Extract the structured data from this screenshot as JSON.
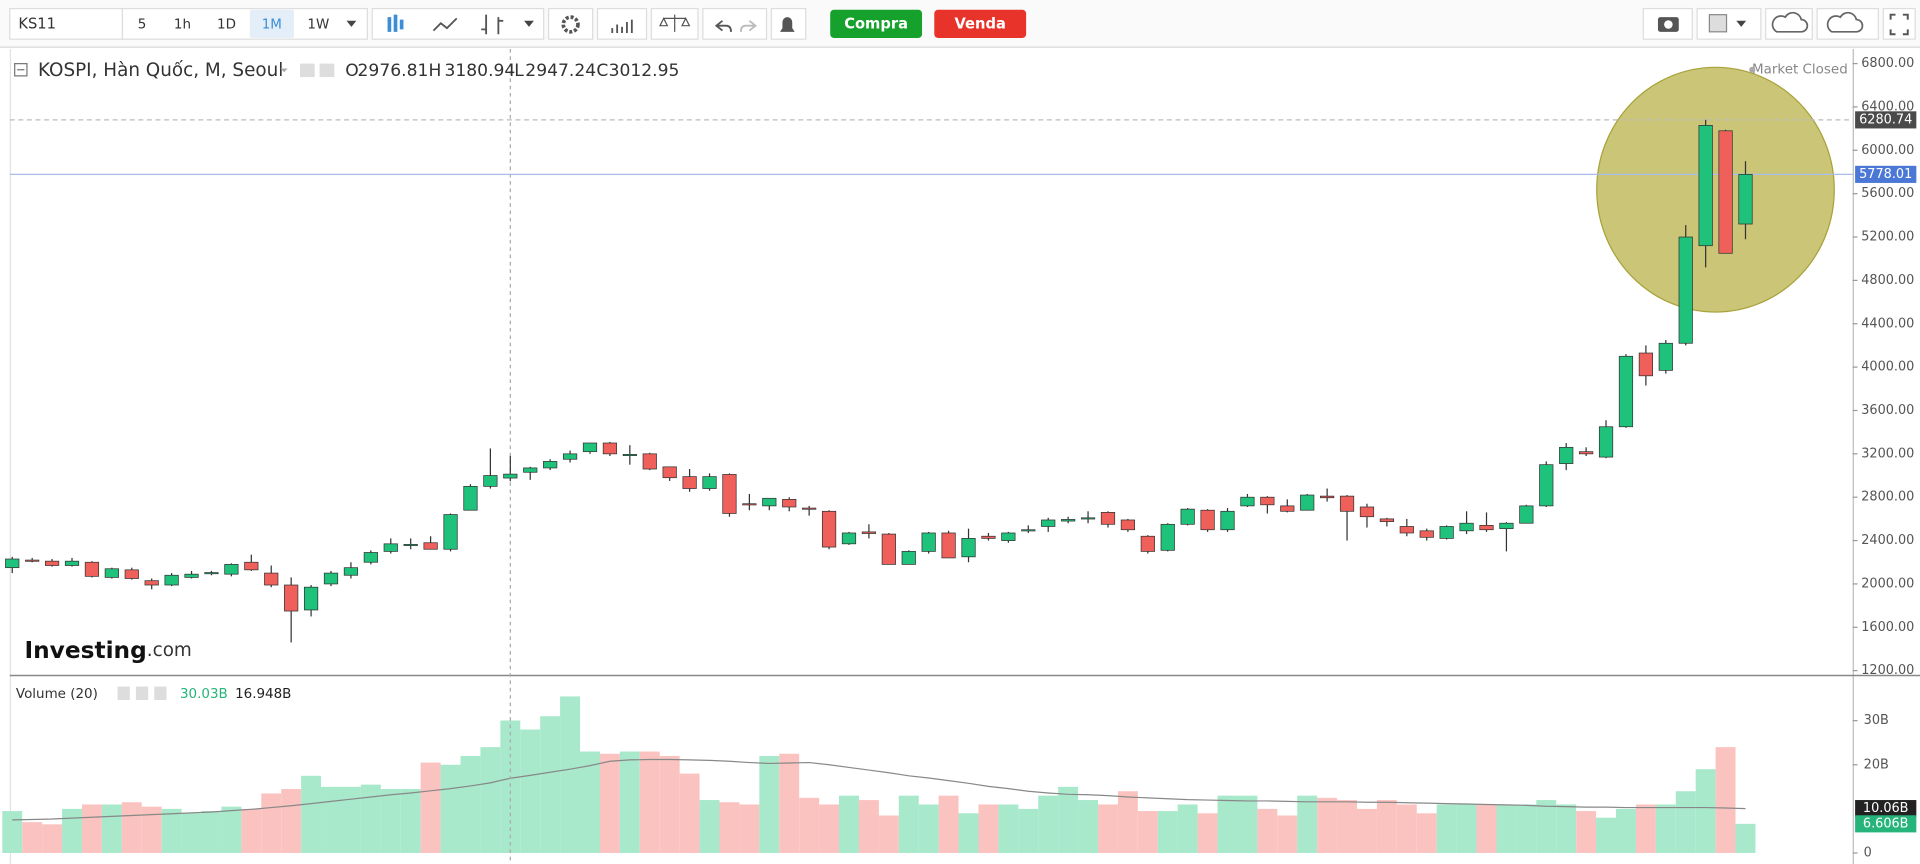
{
  "toolbar": {
    "symbol": "KS11",
    "intervals": [
      "5",
      "1h",
      "1D",
      "1M",
      "1W"
    ],
    "active_interval": "1M",
    "buy": "Compra",
    "sell": "Venda"
  },
  "chart_data": {
    "type": "candlestick",
    "title": "KOSPI, Hàn Quốc, M, Seoul",
    "status": "Market Closed",
    "brand": "Investing",
    "brand_suffix": ".com",
    "ohlc_keys": [
      "O",
      "H",
      "L",
      "C"
    ],
    "crosshair_index": 25,
    "up_color": "#1ec27b",
    "down_color": "#f0605a",
    "open": [
      2150,
      2220,
      2210,
      2170,
      2200,
      2060,
      2130,
      2030,
      1990,
      2060,
      2100,
      2090,
      2200,
      2100,
      1990,
      1760,
      2000,
      2080,
      2200,
      2300,
      2360,
      2380,
      2320,
      2680,
      2900,
      2976.81,
      3030,
      3070,
      3150,
      3220,
      3300,
      3190,
      3200,
      3080,
      2990,
      2880,
      3010,
      2740,
      2720,
      2780,
      2700,
      2670,
      2370,
      2480,
      2460,
      2180,
      2300,
      2470,
      2250,
      2440,
      2400,
      2490,
      2530,
      2580,
      2600,
      2660,
      2590,
      2440,
      2310,
      2550,
      2680,
      2500,
      2720,
      2800,
      2720,
      2680,
      2810,
      2810,
      2710,
      2600,
      2530,
      2490,
      2420,
      2490,
      2540,
      2510,
      2560,
      2720,
      3110,
      3220,
      3170,
      3450,
      4130,
      3970,
      4220,
      5120,
      6180,
      5320
    ],
    "high": [
      2250,
      2240,
      2230,
      2240,
      2210,
      2150,
      2150,
      2050,
      2100,
      2120,
      2120,
      2190,
      2270,
      2170,
      2060,
      1990,
      2120,
      2200,
      2310,
      2420,
      2420,
      2440,
      2650,
      2920,
      3250,
      3180.94,
      3080,
      3150,
      3230,
      3300,
      3310,
      3280,
      3210,
      3080,
      3060,
      3020,
      3020,
      2830,
      2790,
      2800,
      2720,
      2680,
      2480,
      2550,
      2470,
      2310,
      2480,
      2490,
      2510,
      2470,
      2480,
      2540,
      2610,
      2620,
      2670,
      2670,
      2600,
      2450,
      2560,
      2700,
      2690,
      2700,
      2830,
      2810,
      2780,
      2830,
      2880,
      2820,
      2740,
      2610,
      2600,
      2510,
      2540,
      2670,
      2660,
      2570,
      2730,
      3130,
      3300,
      3260,
      3510,
      4120,
      4200,
      4250,
      5310,
      6280.74,
      6190,
      5900
    ],
    "low": [
      2100,
      2200,
      2160,
      2160,
      2060,
      2050,
      2040,
      1950,
      1980,
      2050,
      2080,
      2070,
      2120,
      1970,
      1460,
      1700,
      1980,
      2050,
      2180,
      2280,
      2320,
      2320,
      2300,
      2680,
      2880,
      2947.24,
      2960,
      3050,
      3120,
      3200,
      3180,
      3100,
      3050,
      2950,
      2850,
      2860,
      2620,
      2680,
      2680,
      2670,
      2630,
      2320,
      2360,
      2420,
      2180,
      2180,
      2280,
      2240,
      2200,
      2400,
      2380,
      2470,
      2480,
      2560,
      2560,
      2520,
      2480,
      2280,
      2300,
      2540,
      2480,
      2480,
      2710,
      2650,
      2660,
      2680,
      2760,
      2400,
      2520,
      2530,
      2440,
      2400,
      2410,
      2460,
      2480,
      2300,
      2560,
      2710,
      3050,
      3180,
      3160,
      3440,
      3830,
      3940,
      4200,
      4920,
      5050,
      5180
    ],
    "close": [
      2230,
      2215,
      2170,
      2210,
      2070,
      2140,
      2050,
      1990,
      2080,
      2090,
      2105,
      2180,
      2130,
      1990,
      1750,
      1970,
      2100,
      2150,
      2290,
      2370,
      2365,
      2320,
      2640,
      2900,
      3000,
      3012.95,
      3070,
      3130,
      3200,
      3300,
      3200,
      3195,
      3060,
      2980,
      2880,
      2990,
      2650,
      2730,
      2790,
      2710,
      2690,
      2340,
      2470,
      2465,
      2180,
      2300,
      2470,
      2240,
      2420,
      2420,
      2470,
      2500,
      2590,
      2595,
      2610,
      2550,
      2500,
      2300,
      2550,
      2690,
      2500,
      2670,
      2800,
      2730,
      2670,
      2820,
      2795,
      2670,
      2620,
      2575,
      2470,
      2430,
      2530,
      2560,
      2500,
      2560,
      2720,
      3100,
      3260,
      3200,
      3450,
      4100,
      3920,
      4220,
      5200,
      6230,
      5050,
      5778.01
    ],
    "ylim": [
      1155,
      6935
    ],
    "yticks": [
      {
        "value": 1200,
        "label": "1200.00"
      },
      {
        "value": 1600,
        "label": "1600.00"
      },
      {
        "value": 2000,
        "label": "2000.00"
      },
      {
        "value": 2400,
        "label": "2400.00"
      },
      {
        "value": 2800,
        "label": "2800.00"
      },
      {
        "value": 3200,
        "label": "3200.00"
      },
      {
        "value": 3600,
        "label": "3600.00"
      },
      {
        "value": 4000,
        "label": "4000.00"
      },
      {
        "value": 4400,
        "label": "4400.00"
      },
      {
        "value": 4800,
        "label": "4800.00"
      },
      {
        "value": 5200,
        "label": "5200.00"
      },
      {
        "value": 5600,
        "label": "5600.00"
      },
      {
        "value": 6000,
        "label": "6000.00"
      },
      {
        "value": 6400,
        "label": "6400.00"
      },
      {
        "value": 6800,
        "label": "6800.00"
      }
    ],
    "price_tags": [
      {
        "value": 6280.74,
        "color": "#4a4a4a",
        "style": "dashed"
      },
      {
        "value": 5778.01,
        "color": "#4b78d6",
        "style": "solid"
      }
    ],
    "volume": {
      "title": "Volume (20)",
      "up_color": "#a8e8cb",
      "down_color": "#fbc3c0",
      "ma_color": "#888888",
      "values": [
        9.5,
        7,
        6.5,
        10,
        11,
        11,
        11.5,
        10.5,
        10,
        9,
        9.5,
        10.5,
        10,
        13.5,
        14.5,
        17.5,
        15,
        15,
        15.5,
        14.5,
        14.5,
        20.5,
        20,
        22,
        24,
        30.03,
        28,
        31,
        35.5,
        23,
        22.5,
        23,
        23,
        22,
        18,
        12,
        11.5,
        11,
        22,
        22.5,
        12.5,
        11,
        13,
        12,
        8.5,
        13,
        11,
        13,
        9,
        11,
        11,
        10,
        13,
        15,
        12,
        11,
        14,
        9.5,
        9.5,
        11,
        9,
        13,
        13,
        10,
        8.5,
        13,
        12.5,
        12,
        10,
        12,
        11,
        9,
        11,
        11,
        11,
        11,
        11,
        12,
        11,
        9.5,
        8,
        10,
        11,
        11,
        14,
        19,
        24,
        6.606
      ],
      "ma": [
        7.5,
        7.6,
        7.7,
        7.9,
        8.1,
        8.3,
        8.5,
        8.7,
        8.9,
        9.1,
        9.3,
        9.6,
        9.9,
        10.3,
        10.7,
        11.2,
        11.7,
        12.2,
        12.7,
        13.2,
        13.6,
        14.1,
        14.6,
        15.2,
        15.9,
        16.948,
        17.6,
        18.3,
        19.0,
        19.8,
        20.8,
        21.1,
        21.2,
        21.2,
        21.1,
        21.0,
        20.8,
        20.5,
        20.3,
        20.4,
        20.5,
        20.0,
        19.4,
        18.8,
        18.2,
        17.5,
        17.0,
        16.4,
        15.8,
        15.1,
        14.6,
        14.0,
        13.6,
        13.3,
        13.2,
        13.0,
        12.7,
        12.5,
        12.3,
        12.1,
        12.0,
        11.9,
        11.8,
        11.8,
        11.7,
        11.6,
        11.6,
        11.6,
        11.5,
        11.5,
        11.4,
        11.3,
        11.2,
        11.1,
        11.0,
        10.9,
        10.8,
        10.6,
        10.5,
        10.4,
        10.4,
        10.3,
        10.3,
        10.3,
        10.3,
        10.3,
        10.2,
        10.06
      ],
      "legend": {
        "volume": {
          "value": 30.03,
          "label": "30.03B"
        },
        "ma": {
          "value": 16.948,
          "label": "16.948B"
        }
      },
      "tags": [
        {
          "value": 10.06,
          "label": "10.06B",
          "color": "#222222"
        },
        {
          "value": 6.606,
          "label": "6.606B",
          "color": "#26b47a"
        }
      ],
      "ylim": [
        0,
        39.4
      ],
      "yticks": [
        0,
        {
          "value": 20,
          "label": "20B"
        },
        {
          "value": 30,
          "label": "30B"
        }
      ]
    }
  }
}
